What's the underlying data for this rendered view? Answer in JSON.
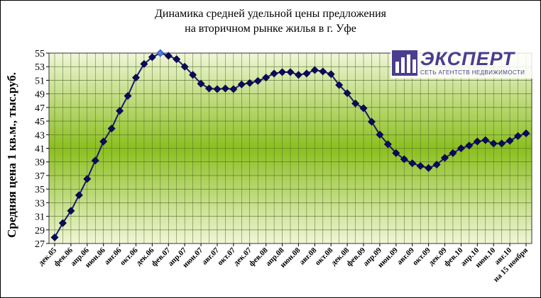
{
  "title_line1": "Динамика средней удельной цены предложения",
  "title_line2": "на вторичном рынке жилья в г. Уфе",
  "logo": {
    "brand": "ЭКСПЕРТ",
    "tagline": "СЕТЬ АГЕНТСТВ НЕДВИЖИМОСТИ"
  },
  "chart_data": {
    "type": "line",
    "title": "Динамика средней удельной цены предложения на вторичном рынке жилья в г. Уфе",
    "ylabel": "Средняя цена 1 кв.м., тыс.руб.",
    "xlabel": "",
    "ylim": [
      27,
      55
    ],
    "yticks": [
      27,
      29,
      31,
      33,
      35,
      37,
      39,
      41,
      43,
      45,
      47,
      49,
      51,
      53,
      55
    ],
    "grid": true,
    "legend": "none",
    "x_labels": [
      "дек.05",
      "фев.06",
      "апр.06",
      "июн.06",
      "авг.06",
      "окт.06",
      "дек.06",
      "фев.07",
      "апр.07",
      "июн.07",
      "авг.07",
      "окт.07",
      "дек.07",
      "фев.08",
      "апр.08",
      "июн.08",
      "авг.08",
      "окт.08",
      "дек.08",
      "фев.09",
      "апр.09",
      "июн.09",
      "авг.09",
      "окт.09",
      "дек.09",
      "фев.10",
      "апр.10",
      "июн.10",
      "авг.10",
      "на 15 ноября"
    ],
    "values": [
      27.9,
      30.0,
      31.8,
      34.1,
      36.5,
      39.2,
      42.0,
      43.9,
      46.5,
      48.7,
      51.4,
      53.4,
      54.4,
      55.0,
      54.6,
      54.1,
      53.0,
      51.8,
      50.5,
      49.8,
      49.7,
      49.8,
      49.7,
      50.4,
      50.6,
      50.9,
      51.4,
      52.0,
      52.2,
      52.2,
      51.8,
      52.0,
      52.5,
      52.3,
      51.9,
      50.3,
      49.1,
      47.6,
      46.9,
      44.9,
      43.0,
      41.6,
      40.3,
      39.4,
      38.8,
      38.4,
      38.1,
      38.6,
      39.6,
      40.3,
      41.0,
      41.4,
      42.0,
      42.2,
      41.7,
      41.7,
      42.1,
      42.8,
      43.2
    ],
    "highlight_index": 13,
    "colors": {
      "line": "#1a1a6e",
      "marker": "#0b0b5a",
      "highlight_marker": "#4a7be0",
      "plot_green": "#8bbf1e",
      "plot_light": "#f0f6d8"
    }
  }
}
